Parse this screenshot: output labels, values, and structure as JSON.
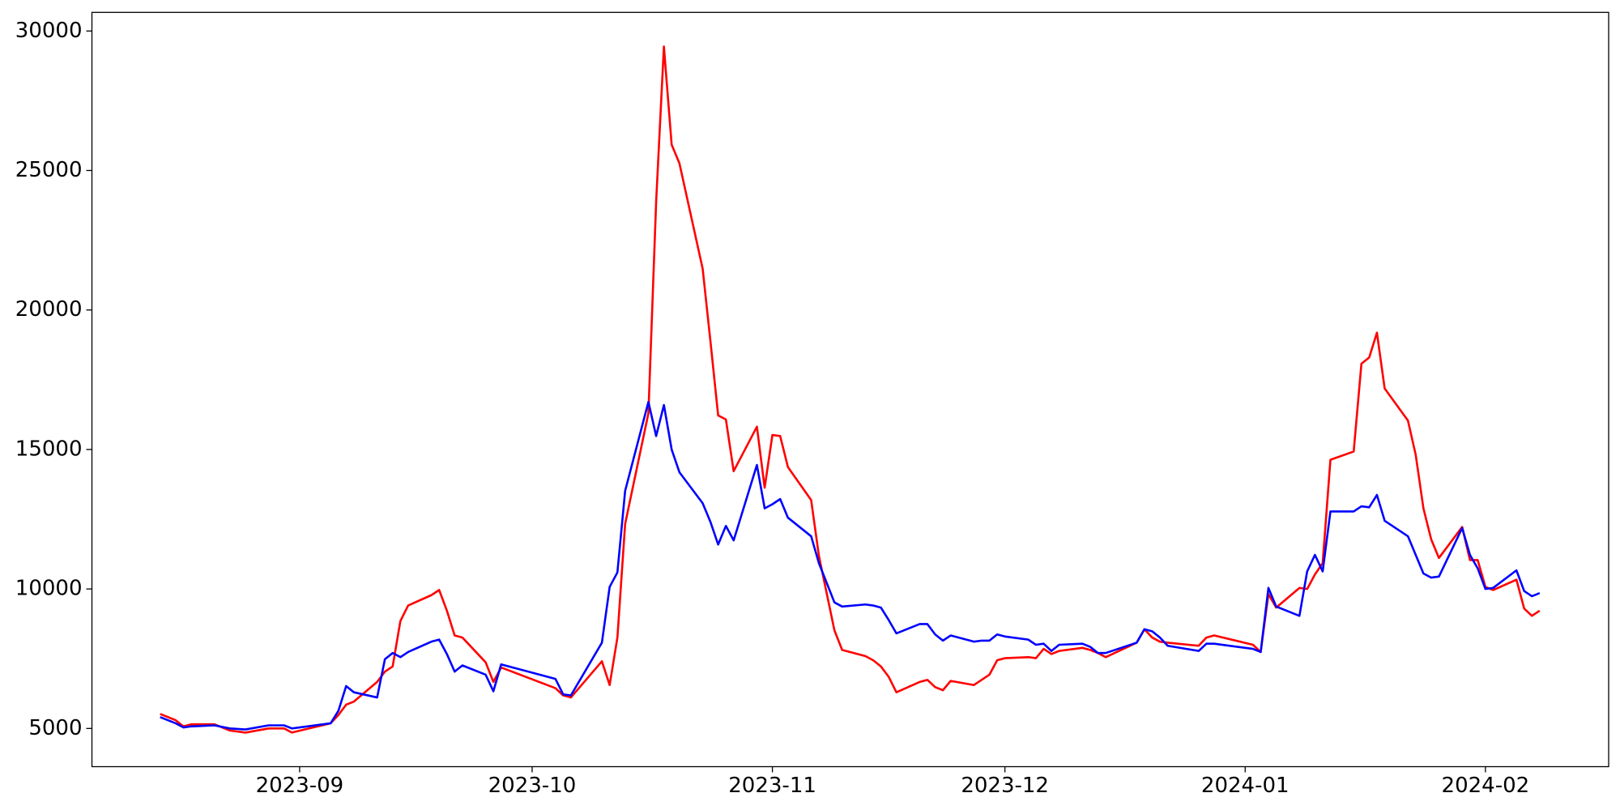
{
  "chart_data": {
    "type": "line",
    "x": [
      -18,
      -16,
      -15,
      -14,
      -11,
      -9,
      -7,
      -4,
      -2,
      -1,
      4,
      5,
      6,
      7,
      10,
      11,
      12,
      13,
      14,
      17,
      18,
      19,
      20,
      21,
      24,
      25,
      26,
      33,
      34,
      35,
      39,
      40,
      41,
      42,
      45,
      46,
      47,
      48,
      49,
      52,
      53,
      54,
      55,
      56,
      59,
      60,
      61,
      62,
      63,
      66,
      67,
      69,
      70,
      73,
      74,
      75,
      76,
      77,
      80,
      81,
      82,
      83,
      84,
      87,
      88,
      89,
      90,
      91,
      94,
      95,
      96,
      97,
      98,
      101,
      102,
      103,
      104,
      108,
      109,
      110,
      111,
      112,
      116,
      117,
      118,
      123,
      124,
      125,
      126,
      129,
      130,
      131,
      132,
      133,
      136,
      137,
      138,
      139,
      140,
      143,
      144,
      145,
      146,
      147,
      150,
      151,
      152,
      153,
      154,
      157,
      158,
      159,
      160
    ],
    "series": [
      {
        "color": "#ff0000",
        "values": [
          5519,
          5296,
          5074,
          5148,
          5148,
          4926,
          4852,
          5000,
          5000,
          4852,
          5185,
          5481,
          5852,
          5963,
          6667,
          7037,
          7222,
          8852,
          9407,
          9778,
          9963,
          9222,
          8333,
          8259,
          7370,
          6667,
          7185,
          6444,
          6185,
          6111,
          7407,
          6556,
          8259,
          12333,
          16296,
          23889,
          29444,
          25926,
          25259,
          21481,
          18889,
          16222,
          16074,
          14222,
          15815,
          13630,
          15519,
          15481,
          14370,
          13185,
          11185,
          8519,
          7815,
          7593,
          7444,
          7222,
          6852,
          6296,
          6667,
          6741,
          6481,
          6370,
          6704,
          6556,
          6741,
          6926,
          7444,
          7519,
          7556,
          7519,
          7852,
          7667,
          7778,
          7889,
          7815,
          7704,
          7556,
          8074,
          8556,
          8259,
          8111,
          8074,
          7963,
          8259,
          8333,
          8000,
          7741,
          9815,
          9333,
          10037,
          10000,
          10519,
          10926,
          14630,
          14926,
          18074,
          18296,
          19185,
          17185,
          16037,
          14815,
          12889,
          11778,
          11111,
          12222,
          11037,
          11037,
          10074,
          9963,
          10333,
          9296,
          9037,
          9222
        ]
      },
      {
        "color": "#0000ff",
        "values": [
          5407,
          5185,
          5037,
          5074,
          5111,
          5000,
          4963,
          5111,
          5111,
          5000,
          5185,
          5630,
          6519,
          6296,
          6111,
          7481,
          7704,
          7556,
          7741,
          8111,
          8185,
          7667,
          7037,
          7259,
          6926,
          6333,
          7296,
          6778,
          6222,
          6185,
          8074,
          10074,
          10593,
          13519,
          16704,
          15481,
          16593,
          15000,
          14185,
          13074,
          12407,
          11593,
          12259,
          11741,
          14444,
          12889,
          13037,
          13222,
          12556,
          11889,
          10926,
          9519,
          9370,
          9444,
          9407,
          9333,
          8889,
          8407,
          8741,
          8741,
          8370,
          8148,
          8333,
          8111,
          8148,
          8148,
          8370,
          8296,
          8185,
          8000,
          8037,
          7778,
          8000,
          8037,
          7926,
          7704,
          7704,
          8074,
          8556,
          8481,
          8259,
          7963,
          7778,
          8037,
          8037,
          7852,
          7741,
          10037,
          9370,
          9037,
          10630,
          11222,
          10630,
          12778,
          12778,
          12963,
          12926,
          13370,
          12444,
          11889,
          11222,
          10556,
          10407,
          10444,
          12185,
          11222,
          10741,
          10000,
          10037,
          10667,
          9926,
          9741,
          9852
        ]
      }
    ],
    "xlim": [
      -26.8,
      168.9
    ],
    "xticks": [
      {
        "value": 0,
        "label": "2023-09"
      },
      {
        "value": 30,
        "label": "2023-10"
      },
      {
        "value": 61,
        "label": "2023-11"
      },
      {
        "value": 91,
        "label": "2023-12"
      },
      {
        "value": 122,
        "label": "2024-01"
      },
      {
        "value": 153,
        "label": "2024-02"
      }
    ],
    "ylim": [
      3630,
      30667
    ],
    "yticks": [
      5000,
      10000,
      15000,
      20000,
      25000,
      30000
    ]
  }
}
